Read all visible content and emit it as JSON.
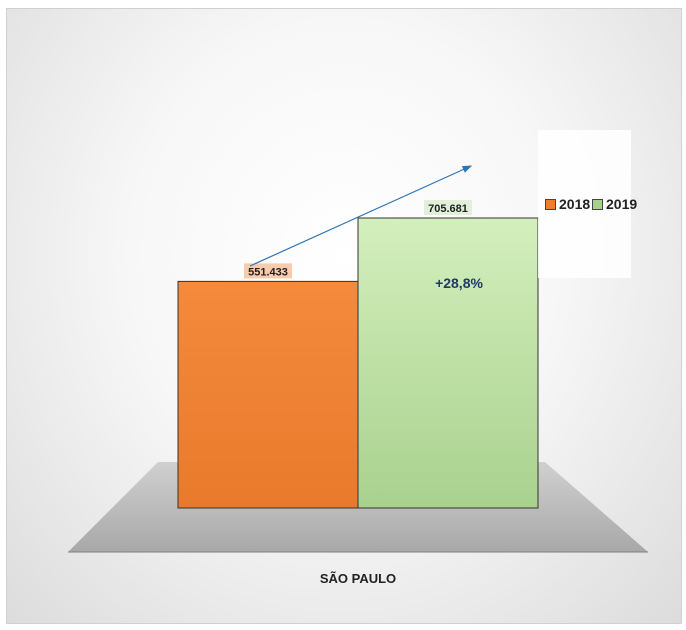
{
  "chart_data": {
    "type": "bar",
    "categories": [
      "SÃO PAULO"
    ],
    "series": [
      {
        "name": "2018",
        "values": [
          551433
        ],
        "label": "551.433",
        "color": "#ed7d31"
      },
      {
        "name": "2019",
        "values": [
          705681
        ],
        "label": "705.681",
        "color": "#a9d18e"
      }
    ],
    "annotation": "+28,8%",
    "xlabel": "SÃO PAULO",
    "ylim": [
      0,
      800000
    ],
    "legend_position": "right",
    "grid": false,
    "style": "3d-floor"
  },
  "colors": {
    "bar_2018": "#ed7d31",
    "bar_2019": "#a9d18e",
    "arrow": "#2e75b6",
    "annotation_text": "#1f3864",
    "floor": "#bfbfbf"
  }
}
